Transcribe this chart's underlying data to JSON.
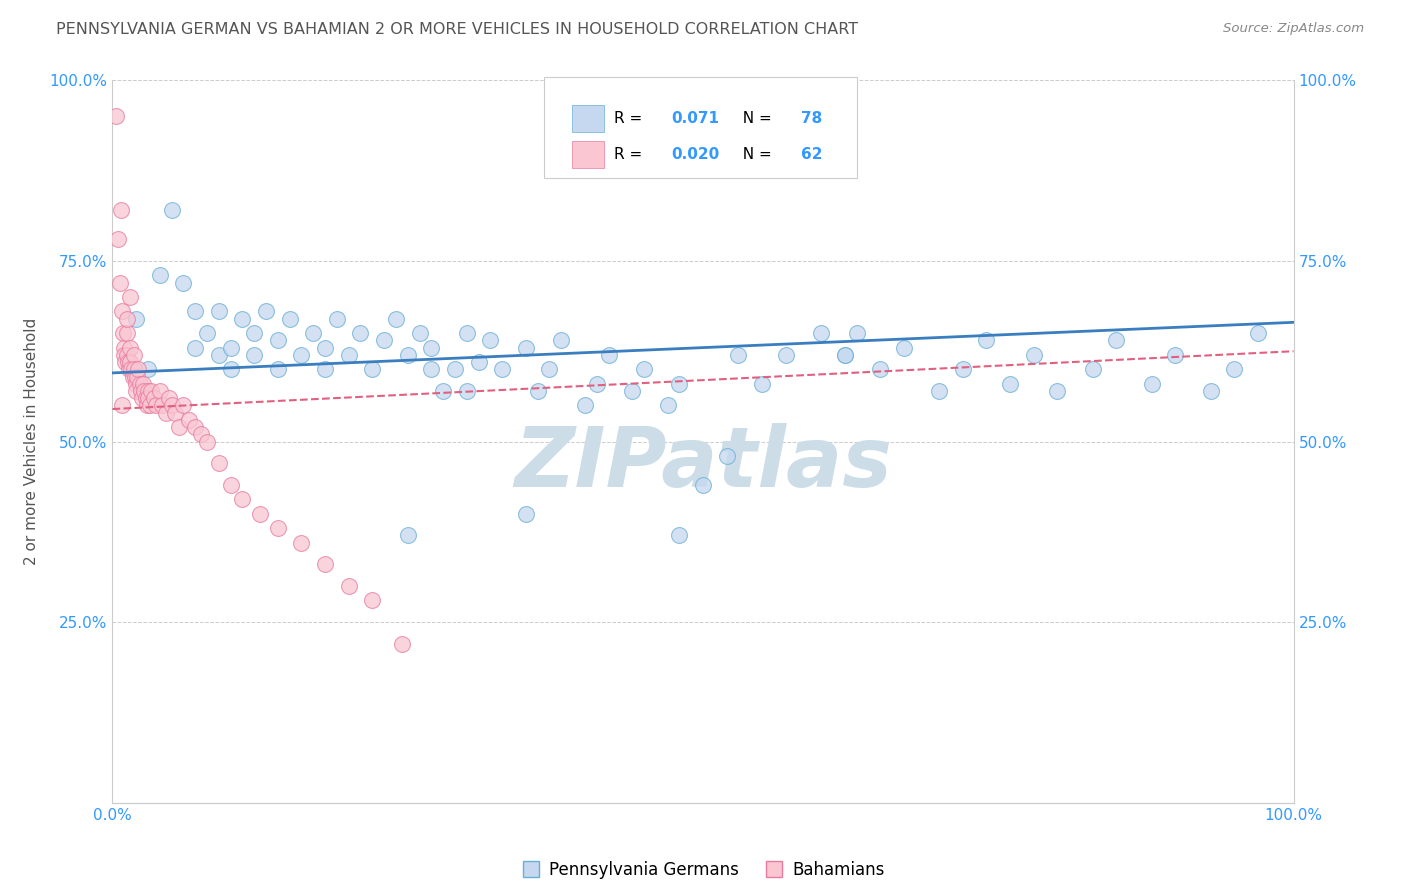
{
  "title": "PENNSYLVANIA GERMAN VS BAHAMIAN 2 OR MORE VEHICLES IN HOUSEHOLD CORRELATION CHART",
  "source_text": "Source: ZipAtlas.com",
  "ylabel": "2 or more Vehicles in Household",
  "xlim": [
    0.0,
    1.0
  ],
  "ylim": [
    0.0,
    1.0
  ],
  "ytick_positions": [
    0.25,
    0.5,
    0.75,
    1.0
  ],
  "ytick_labels": [
    "25.0%",
    "50.0%",
    "75.0%",
    "100.0%"
  ],
  "xtick_labels": [
    "0.0%",
    "100.0%"
  ],
  "legend_r_blue": "0.071",
  "legend_n_blue": "78",
  "legend_r_pink": "0.020",
  "legend_n_pink": "62",
  "legend_label_blue": "Pennsylvania Germans",
  "legend_label_pink": "Bahamians",
  "blue_fill": "#c5d8f0",
  "blue_edge": "#6aaed6",
  "pink_fill": "#f9c6d2",
  "pink_edge": "#e87ba0",
  "blue_line": "#3a7ebf",
  "pink_line": "#e06080",
  "tick_color": "#3399ff",
  "title_color": "#555555",
  "source_color": "#888888",
  "watermark": "ZIPatlas",
  "watermark_color": "#ccdde8",
  "blue_x": [
    0.02,
    0.03,
    0.04,
    0.05,
    0.06,
    0.07,
    0.07,
    0.08,
    0.09,
    0.09,
    0.1,
    0.1,
    0.11,
    0.12,
    0.12,
    0.13,
    0.14,
    0.14,
    0.15,
    0.16,
    0.17,
    0.18,
    0.18,
    0.19,
    0.2,
    0.21,
    0.22,
    0.23,
    0.24,
    0.25,
    0.26,
    0.27,
    0.27,
    0.28,
    0.29,
    0.3,
    0.3,
    0.31,
    0.32,
    0.33,
    0.35,
    0.36,
    0.37,
    0.38,
    0.4,
    0.41,
    0.42,
    0.44,
    0.45,
    0.47,
    0.48,
    0.5,
    0.52,
    0.53,
    0.55,
    0.57,
    0.6,
    0.62,
    0.63,
    0.65,
    0.67,
    0.7,
    0.72,
    0.74,
    0.76,
    0.78,
    0.8,
    0.83,
    0.85,
    0.88,
    0.9,
    0.93,
    0.95,
    0.97,
    0.25,
    0.35,
    0.48,
    0.62
  ],
  "blue_y": [
    0.67,
    0.6,
    0.73,
    0.82,
    0.72,
    0.63,
    0.68,
    0.65,
    0.62,
    0.68,
    0.6,
    0.63,
    0.67,
    0.62,
    0.65,
    0.68,
    0.6,
    0.64,
    0.67,
    0.62,
    0.65,
    0.6,
    0.63,
    0.67,
    0.62,
    0.65,
    0.6,
    0.64,
    0.67,
    0.62,
    0.65,
    0.6,
    0.63,
    0.57,
    0.6,
    0.65,
    0.57,
    0.61,
    0.64,
    0.6,
    0.63,
    0.57,
    0.6,
    0.64,
    0.55,
    0.58,
    0.62,
    0.57,
    0.6,
    0.55,
    0.58,
    0.44,
    0.48,
    0.62,
    0.58,
    0.62,
    0.65,
    0.62,
    0.65,
    0.6,
    0.63,
    0.57,
    0.6,
    0.64,
    0.58,
    0.62,
    0.57,
    0.6,
    0.64,
    0.58,
    0.62,
    0.57,
    0.6,
    0.65,
    0.37,
    0.4,
    0.37,
    0.62
  ],
  "pink_x": [
    0.003,
    0.005,
    0.006,
    0.007,
    0.008,
    0.009,
    0.01,
    0.01,
    0.011,
    0.012,
    0.012,
    0.013,
    0.014,
    0.015,
    0.015,
    0.016,
    0.017,
    0.018,
    0.018,
    0.019,
    0.02,
    0.02,
    0.021,
    0.022,
    0.023,
    0.024,
    0.025,
    0.026,
    0.027,
    0.028,
    0.029,
    0.03,
    0.03,
    0.032,
    0.033,
    0.035,
    0.037,
    0.04,
    0.042,
    0.045,
    0.048,
    0.05,
    0.053,
    0.056,
    0.06,
    0.065,
    0.07,
    0.075,
    0.08,
    0.09,
    0.1,
    0.11,
    0.125,
    0.14,
    0.16,
    0.18,
    0.2,
    0.22,
    0.245,
    0.008,
    0.012,
    0.015
  ],
  "pink_y": [
    0.95,
    0.78,
    0.72,
    0.82,
    0.68,
    0.65,
    0.63,
    0.62,
    0.61,
    0.65,
    0.62,
    0.61,
    0.6,
    0.63,
    0.61,
    0.6,
    0.59,
    0.62,
    0.6,
    0.59,
    0.58,
    0.57,
    0.59,
    0.6,
    0.58,
    0.57,
    0.56,
    0.58,
    0.57,
    0.56,
    0.55,
    0.57,
    0.56,
    0.55,
    0.57,
    0.56,
    0.55,
    0.57,
    0.55,
    0.54,
    0.56,
    0.55,
    0.54,
    0.52,
    0.55,
    0.53,
    0.52,
    0.51,
    0.5,
    0.47,
    0.44,
    0.42,
    0.4,
    0.38,
    0.36,
    0.33,
    0.3,
    0.28,
    0.22,
    0.55,
    0.67,
    0.7
  ],
  "blue_trend_x": [
    0.0,
    1.0
  ],
  "blue_trend_y": [
    0.595,
    0.665
  ],
  "pink_trend_x": [
    0.0,
    1.0
  ],
  "pink_trend_y": [
    0.545,
    0.625
  ]
}
